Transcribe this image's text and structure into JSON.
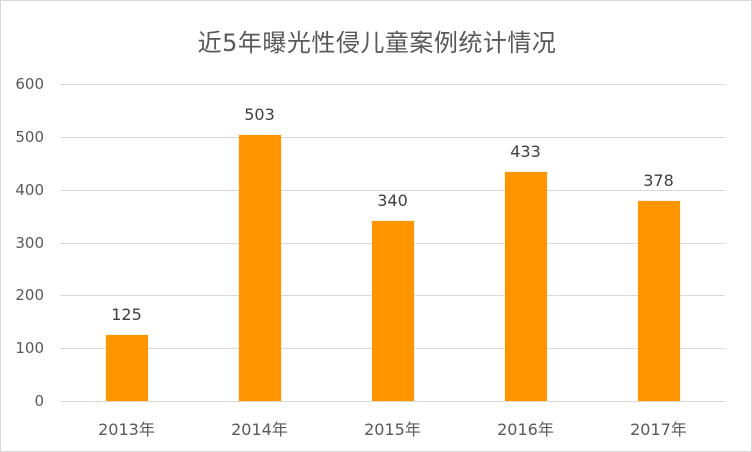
{
  "chart_data": {
    "type": "bar",
    "title": "近5年曝光性侵儿童案例统计情况",
    "categories": [
      "2013年",
      "2014年",
      "2015年",
      "2016年",
      "2017年"
    ],
    "values": [
      125,
      503,
      340,
      433,
      378
    ],
    "xlabel": "",
    "ylabel": "",
    "ylim": [
      0,
      600
    ],
    "yticks": [
      "0",
      "100",
      "200",
      "300",
      "400",
      "500",
      "600"
    ],
    "grid": true,
    "legend": "none",
    "bar_color": "#ff9600",
    "data_labels": [
      "125",
      "503",
      "340",
      "433",
      "378"
    ]
  }
}
